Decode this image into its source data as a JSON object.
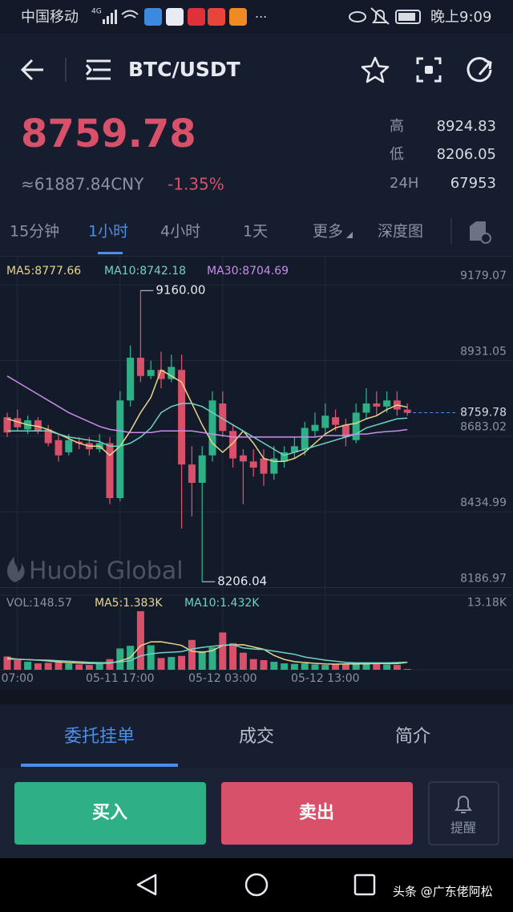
{
  "status_bar": {
    "carrier": "中国移动",
    "network": "4G",
    "time": "晚上9:09"
  },
  "header": {
    "pair": "BTC/USDT"
  },
  "ticker": {
    "price": "8759.78",
    "cny": "≈61887.84CNY",
    "change": "-1.35%",
    "stats": [
      {
        "label": "高",
        "value": "8924.83"
      },
      {
        "label": "低",
        "value": "8206.05"
      },
      {
        "label": "24H",
        "value": "67953"
      }
    ]
  },
  "tabs": [
    "15分钟",
    "1小时",
    "4小时",
    "1天",
    "更多",
    "深度图"
  ],
  "chart_data": {
    "type": "candlestick",
    "ma_labels": [
      "MA5:8777.66",
      "MA10:8742.18",
      "MA30:8704.69"
    ],
    "volume_labels": [
      "VOL:148.57",
      "MA5:1.383K",
      "MA10:1.432K"
    ],
    "up_color": "#2eaf86",
    "down_color": "#d9506a",
    "categories": [
      null,
      "07:00",
      null,
      null,
      null,
      null,
      null,
      null,
      null,
      null,
      null,
      "05-11 17:00",
      null,
      null,
      null,
      null,
      null,
      null,
      null,
      null,
      null,
      "05-12 03:00",
      null,
      null,
      null,
      null,
      null,
      null,
      null,
      null,
      null,
      "05-12 13:00",
      null,
      null,
      null,
      null,
      null,
      null,
      null,
      null
    ],
    "ohlc": [
      [
        8745,
        8760,
        8680,
        8695
      ],
      [
        8742,
        8770,
        8700,
        8712
      ],
      [
        8705,
        8750,
        8690,
        8735
      ],
      [
        8735,
        8745,
        8690,
        8700
      ],
      [
        8705,
        8720,
        8650,
        8660
      ],
      [
        8670,
        8690,
        8600,
        8620
      ],
      [
        8630,
        8690,
        8620,
        8670
      ],
      [
        8665,
        8680,
        8640,
        8660
      ],
      [
        8660,
        8680,
        8620,
        8640
      ],
      [
        8640,
        8690,
        8630,
        8660
      ],
      [
        8660,
        8680,
        8460,
        8480
      ],
      [
        8480,
        8830,
        8470,
        8800
      ],
      [
        8800,
        8980,
        8780,
        8940
      ],
      [
        8940,
        9160,
        8860,
        8880
      ],
      [
        8880,
        8930,
        8870,
        8900
      ],
      [
        8900,
        8960,
        8840,
        8870
      ],
      [
        8870,
        8950,
        8860,
        8910
      ],
      [
        8900,
        8950,
        8380,
        8590
      ],
      [
        8590,
        8650,
        8420,
        8530
      ],
      [
        8530,
        8650,
        8206.04,
        8620
      ],
      [
        8620,
        8830,
        8600,
        8800
      ],
      [
        8790,
        8830,
        8680,
        8700
      ],
      [
        8700,
        8720,
        8580,
        8610
      ],
      [
        8620,
        8640,
        8460,
        8600
      ],
      [
        8600,
        8640,
        8550,
        8580
      ],
      [
        8610,
        8640,
        8520,
        8560
      ],
      [
        8560,
        8650,
        8540,
        8610
      ],
      [
        8600,
        8650,
        8580,
        8630
      ],
      [
        8630,
        8680,
        8610,
        8650
      ],
      [
        8640,
        8730,
        8620,
        8710
      ],
      [
        8700,
        8760,
        8680,
        8720
      ],
      [
        8710,
        8790,
        8690,
        8750
      ],
      [
        8745,
        8770,
        8700,
        8720
      ],
      [
        8720,
        8740,
        8650,
        8680
      ],
      [
        8670,
        8790,
        8660,
        8760
      ],
      [
        8760,
        8840,
        8740,
        8790
      ],
      [
        8790,
        8830,
        8750,
        8780
      ],
      [
        8780,
        8830,
        8760,
        8800
      ],
      [
        8800,
        8830,
        8750,
        8770
      ],
      [
        8770,
        8790,
        8750,
        8759.78
      ]
    ],
    "high_label": {
      "value": 9160,
      "label": "9160.00"
    },
    "ma": [
      {
        "name": "MA5",
        "color": "#e8d58a",
        "values": [
          8740,
          8730,
          8720,
          8715,
          8705,
          8690,
          8675,
          8660,
          8650,
          8650,
          8620,
          8650,
          8700,
          8760,
          8810,
          8900,
          8880,
          8860,
          8790,
          8720,
          8660,
          8630,
          8660,
          8700,
          8660,
          8610,
          8600,
          8600,
          8610,
          8630,
          8660,
          8690,
          8710,
          8720,
          8725,
          8740,
          8750,
          8770,
          8785,
          8777.66
        ]
      },
      {
        "name": "MA10",
        "color": "#6fd3c0",
        "values": [
          8700,
          8700,
          8700,
          8700,
          8700,
          8690,
          8680,
          8675,
          8670,
          8665,
          8650,
          8650,
          8660,
          8680,
          8710,
          8760,
          8780,
          8790,
          8790,
          8780,
          8760,
          8740,
          8720,
          8700,
          8680,
          8660,
          8640,
          8620,
          8630,
          8640,
          8650,
          8660,
          8670,
          8680,
          8690,
          8710,
          8720,
          8730,
          8740,
          8742.18
        ]
      },
      {
        "name": "MA30",
        "color": "#c88de8",
        "values": [
          8880,
          8860,
          8840,
          8820,
          8800,
          8780,
          8760,
          8745,
          8730,
          8715,
          8705,
          8700,
          8695,
          8695,
          8695,
          8700,
          8700,
          8700,
          8700,
          8695,
          8690,
          8685,
          8680,
          8680,
          8680,
          8680,
          8680,
          8680,
          8680,
          8680,
          8680,
          8685,
          8685,
          8685,
          8690,
          8690,
          8695,
          8698,
          8700,
          8704.69
        ]
      }
    ],
    "ylim": [
      8162,
      9271
    ],
    "yticks": [
      9179.07,
      8931.05,
      8683.02,
      8434.99,
      8186.97
    ],
    "volume": [
      2500,
      1800,
      1500,
      1200,
      1300,
      1600,
      1200,
      1000,
      900,
      1100,
      2000,
      4000,
      4500,
      11000,
      4600,
      2200,
      2400,
      2600,
      5600,
      3500,
      4200,
      7000,
      5000,
      3200,
      2000,
      1800,
      1500,
      1200,
      1100,
      1200,
      1000,
      900,
      1100,
      1000,
      1200,
      1400,
      1200,
      1000,
      900,
      148.57
    ],
    "volume_ma": [
      {
        "name": "MA5",
        "color": "#e8d58a",
        "values": [
          2200,
          2000,
          1900,
          1800,
          1660,
          1480,
          1360,
          1260,
          1200,
          1220,
          1240,
          1640,
          2300,
          4520,
          5240,
          5260,
          4940,
          4560,
          3480,
          3260,
          3580,
          4580,
          4660,
          4700,
          4280,
          3840,
          2700,
          1940,
          1520,
          1360,
          1200,
          1080,
          1060,
          1080,
          1080,
          1120,
          1180,
          1180,
          1140,
          1383
        ]
      },
      {
        "name": "MA10",
        "color": "#6fd3c0",
        "values": [
          2000,
          1950,
          1900,
          1850,
          1800,
          1700,
          1600,
          1500,
          1400,
          1340,
          1350,
          1450,
          1700,
          2600,
          3000,
          3200,
          3300,
          3400,
          3900,
          4200,
          4400,
          4600,
          4700,
          4100,
          3900,
          3800,
          3500,
          3200,
          2900,
          2400,
          2100,
          1800,
          1600,
          1400,
          1300,
          1300,
          1300,
          1300,
          1350,
          1432
        ]
      }
    ],
    "vlim": [
      0,
      14000
    ],
    "vticks": [
      {
        "value": 13180,
        "label": "13.18K"
      }
    ],
    "grid": true
  },
  "watermark": "Huobi Global",
  "bottom_tabs": [
    "委托挂单",
    "成交",
    "简介"
  ],
  "buttons": {
    "buy": "买入",
    "sell": "卖出",
    "alert": "提醒"
  },
  "footer": "头条 @广东佬阿松"
}
